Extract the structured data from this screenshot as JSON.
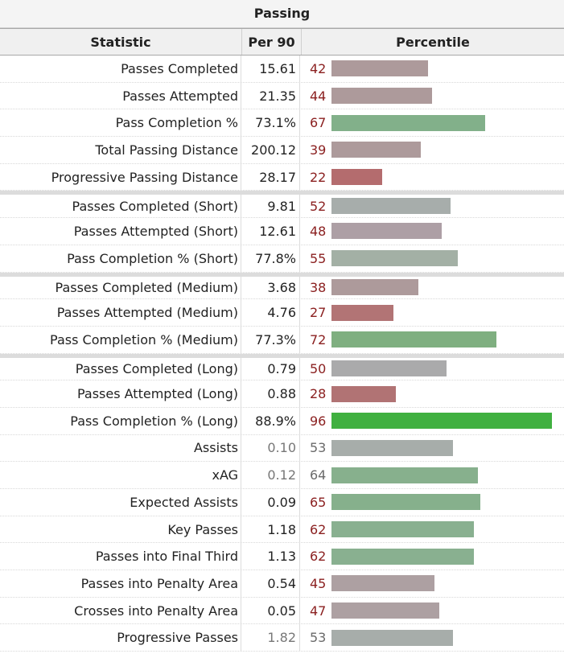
{
  "table": {
    "caption": "Passing",
    "headers": {
      "statistic": "Statistic",
      "per90": "Per 90",
      "percentile": "Percentile"
    },
    "rows": [
      {
        "stat": "Passes Completed",
        "per90": "15.61",
        "pct": 42,
        "color": "#ad9a9b",
        "sep": false,
        "muted": false
      },
      {
        "stat": "Passes Attempted",
        "per90": "21.35",
        "pct": 44,
        "color": "#ad9a9b",
        "sep": false,
        "muted": false
      },
      {
        "stat": "Pass Completion %",
        "per90": "73.1%",
        "pct": 67,
        "color": "#82b08a",
        "sep": false,
        "muted": false
      },
      {
        "stat": "Total Passing Distance",
        "per90": "200.12",
        "pct": 39,
        "color": "#ad9a9b",
        "sep": false,
        "muted": false
      },
      {
        "stat": "Progressive Passing Distance",
        "per90": "28.17",
        "pct": 22,
        "color": "#b46c6e",
        "sep": false,
        "muted": false
      },
      {
        "stat": "Passes Completed (Short)",
        "per90": "9.81",
        "pct": 52,
        "color": "#a7adab",
        "sep": true,
        "muted": false
      },
      {
        "stat": "Passes Attempted (Short)",
        "per90": "12.61",
        "pct": 48,
        "color": "#ad9fa5",
        "sep": false,
        "muted": false
      },
      {
        "stat": "Pass Completion % (Short)",
        "per90": "77.8%",
        "pct": 55,
        "color": "#a3b0a5",
        "sep": false,
        "muted": false
      },
      {
        "stat": "Passes Completed (Medium)",
        "per90": "3.68",
        "pct": 38,
        "color": "#ad9a9b",
        "sep": true,
        "muted": false
      },
      {
        "stat": "Passes Attempted (Medium)",
        "per90": "4.76",
        "pct": 27,
        "color": "#b27475",
        "sep": false,
        "muted": false
      },
      {
        "stat": "Pass Completion % (Medium)",
        "per90": "77.3%",
        "pct": 72,
        "color": "#7faf80",
        "sep": false,
        "muted": false
      },
      {
        "stat": "Passes Completed (Long)",
        "per90": "0.79",
        "pct": 50,
        "color": "#aaaaab",
        "sep": true,
        "muted": false
      },
      {
        "stat": "Passes Attempted (Long)",
        "per90": "0.88",
        "pct": 28,
        "color": "#b17374",
        "sep": false,
        "muted": false
      },
      {
        "stat": "Pass Completion % (Long)",
        "per90": "88.9%",
        "pct": 96,
        "color": "#40b040",
        "sep": false,
        "muted": false
      },
      {
        "stat": "Assists",
        "per90": "0.10",
        "pct": 53,
        "color": "#a7adaa",
        "sep": false,
        "muted": true
      },
      {
        "stat": "xAG",
        "per90": "0.12",
        "pct": 64,
        "color": "#87b08d",
        "sep": false,
        "muted": true
      },
      {
        "stat": "Expected Assists",
        "per90": "0.09",
        "pct": 65,
        "color": "#86b08c",
        "sep": false,
        "muted": false
      },
      {
        "stat": "Key Passes",
        "per90": "1.18",
        "pct": 62,
        "color": "#89b090",
        "sep": false,
        "muted": false
      },
      {
        "stat": "Passes into Final Third",
        "per90": "1.13",
        "pct": 62,
        "color": "#89b090",
        "sep": false,
        "muted": false
      },
      {
        "stat": "Passes into Penalty Area",
        "per90": "0.54",
        "pct": 45,
        "color": "#ada0a2",
        "sep": false,
        "muted": false
      },
      {
        "stat": "Crosses into Penalty Area",
        "per90": "0.05",
        "pct": 47,
        "color": "#ada0a2",
        "sep": false,
        "muted": false
      },
      {
        "stat": "Progressive Passes",
        "per90": "1.82",
        "pct": 53,
        "color": "#a7adaa",
        "sep": false,
        "muted": true
      }
    ]
  }
}
